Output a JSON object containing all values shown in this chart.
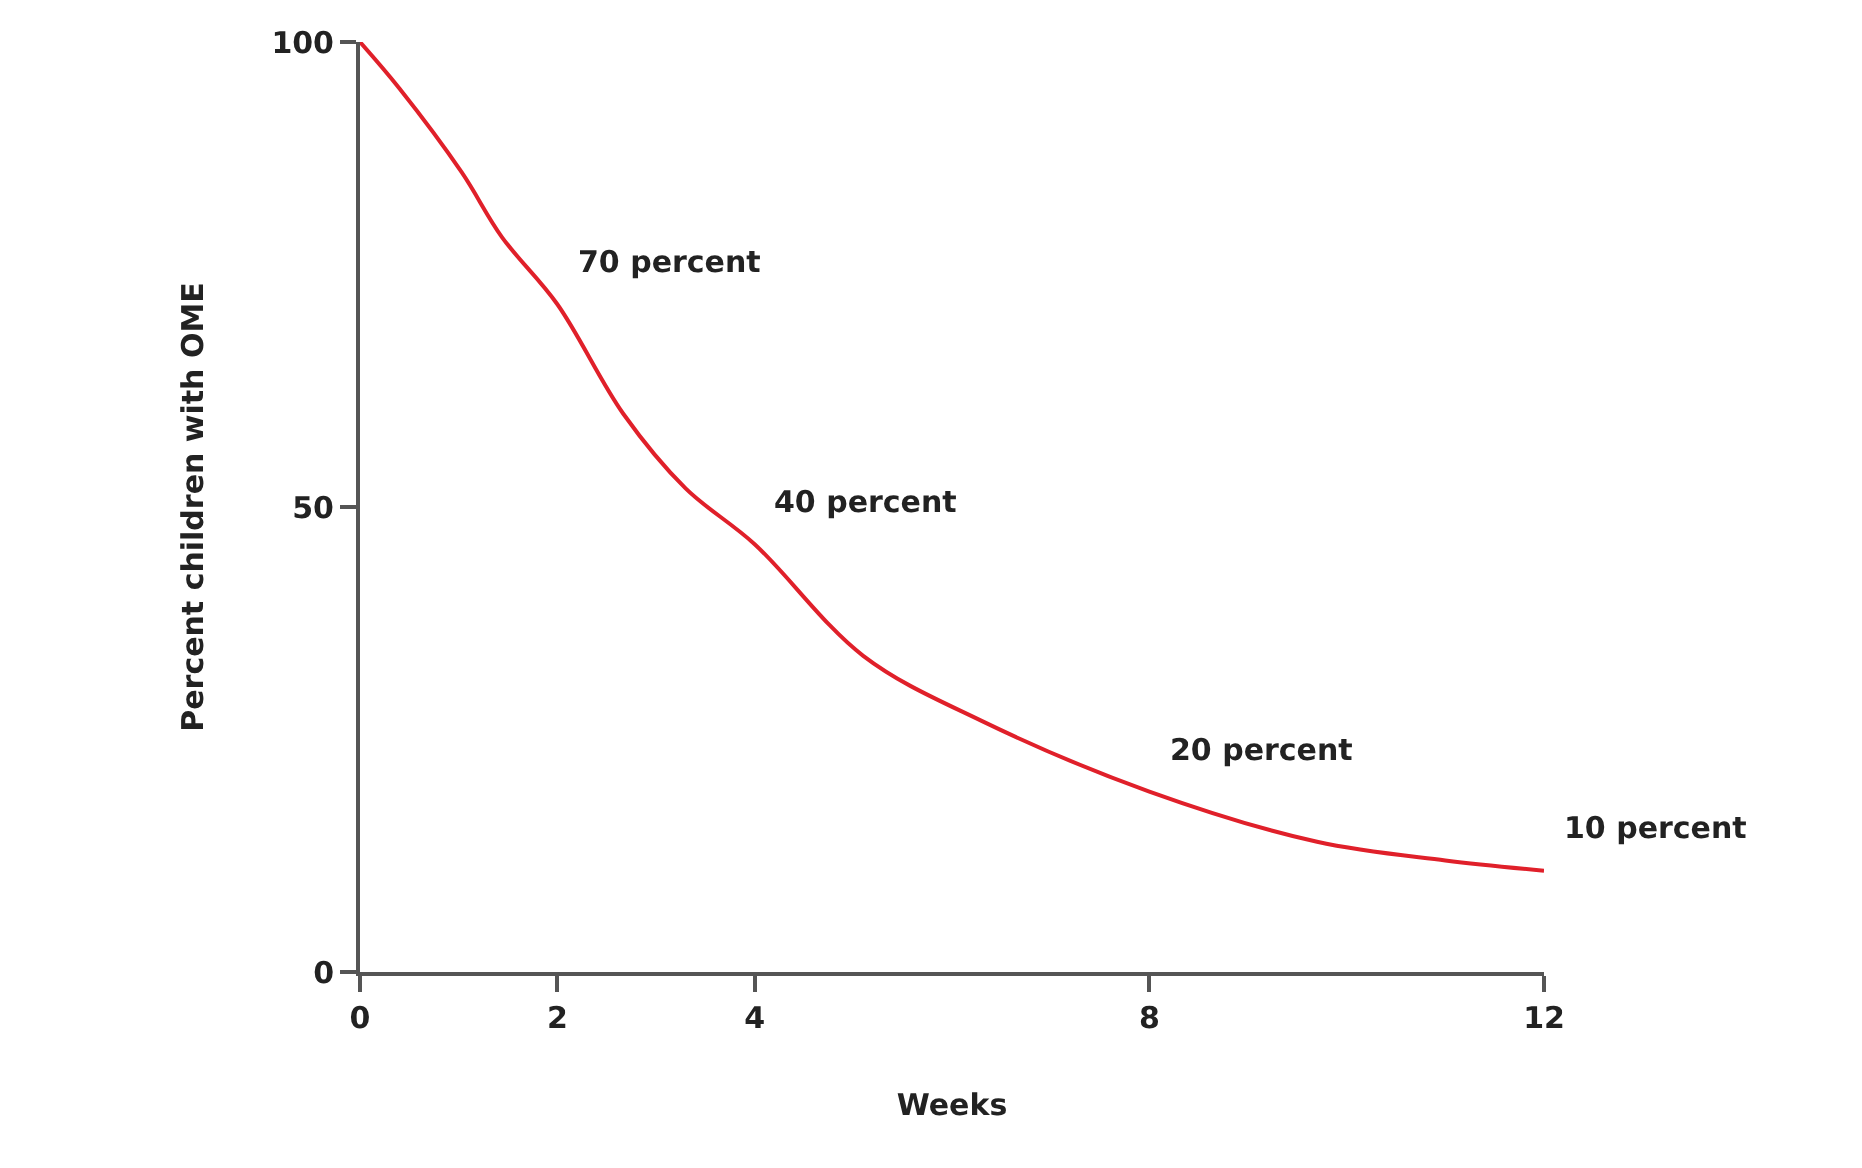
{
  "chart_data": {
    "type": "line",
    "xlabel": "Weeks",
    "ylabel": "Percent children with OME",
    "x": [
      0,
      0.4,
      1.03,
      1.44,
      2,
      2.67,
      3.3,
      4,
      5.1,
      6.3,
      8,
      9.7,
      11,
      12
    ],
    "series": [
      {
        "color": "#e0202a",
        "values": [
          100,
          95,
          86,
          79,
          71.8,
          60,
          52,
          46,
          34,
          27,
          19.4,
          14,
          12,
          10.9
        ]
      }
    ],
    "xlim": [
      0,
      12
    ],
    "xticks": [
      0,
      2,
      4,
      8,
      12
    ],
    "ylim": [
      0,
      100
    ],
    "yticks": [
      0,
      50,
      100
    ],
    "annotations": [
      {
        "text": "70 percent",
        "x": 2,
        "y": 71.8
      },
      {
        "text": "40 percent",
        "x": 4,
        "y": 46
      },
      {
        "text": "20 percent",
        "x": 8,
        "y": 19.4
      },
      {
        "text": "10 percent",
        "x": 12,
        "y": 10.9
      }
    ],
    "marker": "none",
    "line_style": "solid"
  }
}
